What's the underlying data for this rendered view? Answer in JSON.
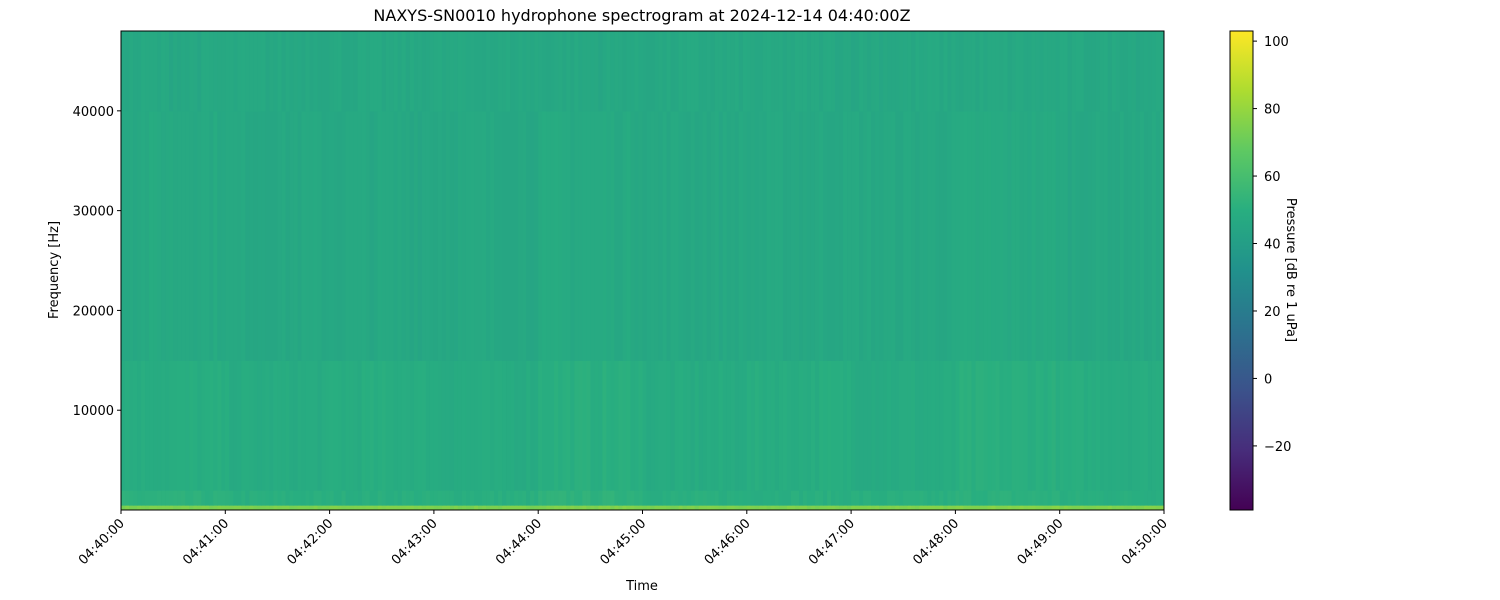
{
  "chart_data": {
    "type": "heatmap",
    "title": "NAXYS-SN0010 hydrophone spectrogram at 2024-12-14 04:40:00Z",
    "xlabel": "Time",
    "ylabel": "Frequency [Hz]",
    "colorbar_label": "Pressure [dB re 1 uPa]",
    "colormap": "viridis",
    "clim": [
      -39,
      103
    ],
    "xlim": [
      "04:40:00",
      "04:50:00"
    ],
    "ylim": [
      0,
      48000
    ],
    "x_ticks": [
      "04:40:00",
      "04:41:00",
      "04:42:00",
      "04:43:00",
      "04:44:00",
      "04:45:00",
      "04:46:00",
      "04:47:00",
      "04:48:00",
      "04:49:00",
      "04:50:00"
    ],
    "y_ticks": [
      10000,
      20000,
      30000,
      40000
    ],
    "y_tick_labels": [
      "10000",
      "20000",
      "30000",
      "40000"
    ],
    "colorbar_ticks": [
      -20,
      0,
      20,
      40,
      60,
      80,
      100
    ],
    "colorbar_tick_labels": [
      "−20",
      "0",
      "20",
      "40",
      "60",
      "80",
      "100"
    ],
    "freq_bands_hz": [
      [
        0,
        500
      ],
      [
        500,
        2000
      ],
      [
        2000,
        15000
      ],
      [
        15000,
        40000
      ],
      [
        40000,
        48000
      ]
    ],
    "time_minutes": [
      "04:40",
      "04:41",
      "04:42",
      "04:43",
      "04:44",
      "04:45",
      "04:46",
      "04:47",
      "04:48",
      "04:49"
    ],
    "levels_db": [
      [
        74,
        74,
        75,
        74,
        75,
        74,
        74,
        75,
        76,
        75
      ],
      [
        51,
        50,
        50,
        50,
        52,
        50,
        50,
        50,
        51,
        50
      ],
      [
        49,
        48,
        49,
        48,
        50,
        48,
        49,
        48,
        50,
        49
      ],
      [
        47,
        46,
        46,
        46,
        47,
        46,
        46,
        46,
        47,
        46
      ],
      [
        46,
        46,
        46,
        46,
        46,
        46,
        46,
        46,
        46,
        46
      ]
    ],
    "grid": false
  }
}
